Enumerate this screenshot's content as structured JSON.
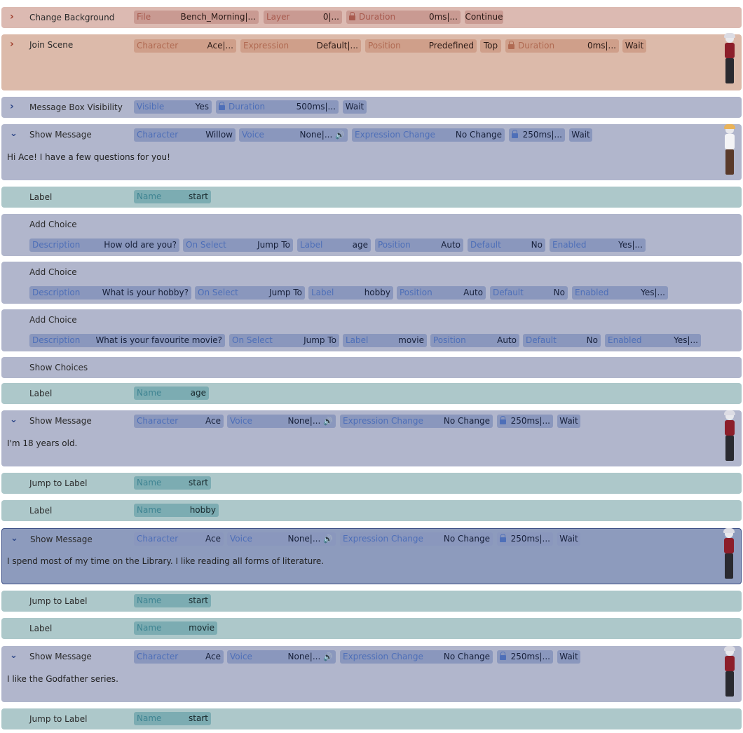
{
  "colors": {
    "scene": "#dcbab2",
    "message": "#b1b6cc",
    "label": "#adc8ca",
    "selected": "#8d9bbd"
  },
  "icons": {
    "expand": "chevron-right-icon",
    "collapse": "chevron-down-icon",
    "lock": "lock-icon",
    "voice": "speaker-icon"
  },
  "r1": {
    "title": "Change Background",
    "file_k": "File",
    "file_v": "Bench_Morning|...",
    "layer_k": "Layer",
    "layer_v": "0|...",
    "dur_k": "Duration",
    "dur_v": "0ms|...",
    "after": "Continue"
  },
  "r2": {
    "title": "Join Scene",
    "char_k": "Character",
    "char_v": "Ace|...",
    "expr_k": "Expression",
    "expr_v": "Default|...",
    "pos_k": "Position",
    "pos_v": "Predefined",
    "pos_extra": "Top",
    "dur_k": "Duration",
    "dur_v": "0ms|...",
    "after": "Wait"
  },
  "r3": {
    "title": "Message Box Visibility",
    "vis_k": "Visible",
    "vis_v": "Yes",
    "dur_k": "Duration",
    "dur_v": "500ms|...",
    "after": "Wait"
  },
  "r4": {
    "title": "Show Message",
    "char_k": "Character",
    "char_v": "Willow",
    "voice_k": "Voice",
    "voice_v": "None|...",
    "expr_k": "Expression Change",
    "expr_v": "No Change",
    "dur_v": "250ms|...",
    "after": "Wait",
    "text": "Hi Ace! I have a few questions for you!"
  },
  "r5": {
    "title": "Label",
    "name_k": "Name",
    "name_v": "start"
  },
  "r6": {
    "title": "Add Choice",
    "desc_k": "Description",
    "desc_v": "How old are you?",
    "onsel_k": "On Select",
    "onsel_v": "Jump To",
    "label_k": "Label",
    "label_v": "age",
    "pos_k": "Position",
    "pos_v": "Auto",
    "def_k": "Default",
    "def_v": "No",
    "en_k": "Enabled",
    "en_v": "Yes|..."
  },
  "r7": {
    "title": "Add Choice",
    "desc_k": "Description",
    "desc_v": "What is your hobby?",
    "onsel_k": "On Select",
    "onsel_v": "Jump To",
    "label_k": "Label",
    "label_v": "hobby",
    "pos_k": "Position",
    "pos_v": "Auto",
    "def_k": "Default",
    "def_v": "No",
    "en_k": "Enabled",
    "en_v": "Yes|..."
  },
  "r8": {
    "title": "Add Choice",
    "desc_k": "Description",
    "desc_v": "What is your favourite movie?",
    "onsel_k": "On Select",
    "onsel_v": "Jump To",
    "label_k": "Label",
    "label_v": "movie",
    "pos_k": "Position",
    "pos_v": "Auto",
    "def_k": "Default",
    "def_v": "No",
    "en_k": "Enabled",
    "en_v": "Yes|..."
  },
  "r9": {
    "title": "Show Choices"
  },
  "r10": {
    "title": "Label",
    "name_k": "Name",
    "name_v": "age"
  },
  "r11": {
    "title": "Show Message",
    "char_k": "Character",
    "char_v": "Ace",
    "voice_k": "Voice",
    "voice_v": "None|...",
    "expr_k": "Expression Change",
    "expr_v": "No Change",
    "dur_v": "250ms|...",
    "after": "Wait",
    "text": "I'm 18 years old."
  },
  "r12": {
    "title": "Jump to Label",
    "name_k": "Name",
    "name_v": "start"
  },
  "r13": {
    "title": "Label",
    "name_k": "Name",
    "name_v": "hobby"
  },
  "r14": {
    "title": "Show Message",
    "char_k": "Character",
    "char_v": "Ace",
    "voice_k": "Voice",
    "voice_v": "None|...",
    "expr_k": "Expression Change",
    "expr_v": "No Change",
    "dur_v": "250ms|...",
    "after": "Wait",
    "text": "I spend most of my time on the Library. I like reading all forms of literature."
  },
  "r15": {
    "title": "Jump to Label",
    "name_k": "Name",
    "name_v": "start"
  },
  "r16": {
    "title": "Label",
    "name_k": "Name",
    "name_v": "movie"
  },
  "r17": {
    "title": "Show Message",
    "char_k": "Character",
    "char_v": "Ace",
    "voice_k": "Voice",
    "voice_v": "None|...",
    "expr_k": "Expression Change",
    "expr_v": "No Change",
    "dur_v": "250ms|...",
    "after": "Wait",
    "text": "I like the Godfather series."
  },
  "r18": {
    "title": "Jump to Label",
    "name_k": "Name",
    "name_v": "start"
  }
}
